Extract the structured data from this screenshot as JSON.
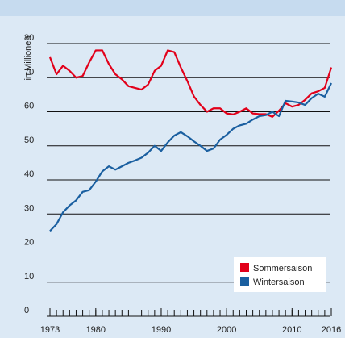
{
  "chart_data": {
    "type": "line",
    "y_label": "in Millionen",
    "x": [
      1973,
      1974,
      1975,
      1976,
      1977,
      1978,
      1979,
      1980,
      1981,
      1982,
      1983,
      1984,
      1985,
      1986,
      1987,
      1988,
      1989,
      1990,
      1991,
      1992,
      1993,
      1994,
      1995,
      1996,
      1997,
      1998,
      1999,
      2000,
      2001,
      2002,
      2003,
      2004,
      2005,
      2006,
      2007,
      2008,
      2009,
      2010,
      2011,
      2012,
      2013,
      2014,
      2015,
      2016
    ],
    "series": [
      {
        "name": "Sommersaison",
        "color": "#e2001a",
        "values": [
          76,
          71,
          73.5,
          72,
          70,
          70.5,
          74.5,
          78,
          78,
          74,
          71,
          69.5,
          67.5,
          67,
          66.5,
          68,
          72,
          73.5,
          78,
          77.5,
          73,
          69,
          64.5,
          62,
          60,
          61,
          61,
          59.5,
          59.2,
          60,
          61,
          59.5,
          59.3,
          59.3,
          58.5,
          60.3,
          62.5,
          61.5,
          62,
          63.5,
          65.4,
          66,
          67,
          73
        ]
      },
      {
        "name": "Wintersaison",
        "color": "#1a5fa0",
        "values": [
          25,
          27,
          30.5,
          32.5,
          34,
          36.5,
          37,
          39.5,
          42.5,
          44,
          43,
          44,
          45,
          45.7,
          46.5,
          48,
          50,
          48.5,
          51,
          53,
          54,
          52.8,
          51.3,
          50,
          48.5,
          49.2,
          51.8,
          53.2,
          55,
          56,
          56.5,
          57.7,
          58.7,
          59,
          60,
          58.7,
          63.2,
          63,
          62.7,
          62,
          64,
          65.3,
          64.4,
          68.4
        ]
      }
    ],
    "xlim": [
      1973,
      2016
    ],
    "xticks": [
      1973,
      1980,
      1990,
      2000,
      2010,
      2016
    ],
    "ylim": [
      0,
      80
    ],
    "yticks": [
      0,
      10,
      20,
      30,
      40,
      50,
      60,
      70,
      80
    ],
    "grid": true,
    "legend_position": "lower right"
  }
}
